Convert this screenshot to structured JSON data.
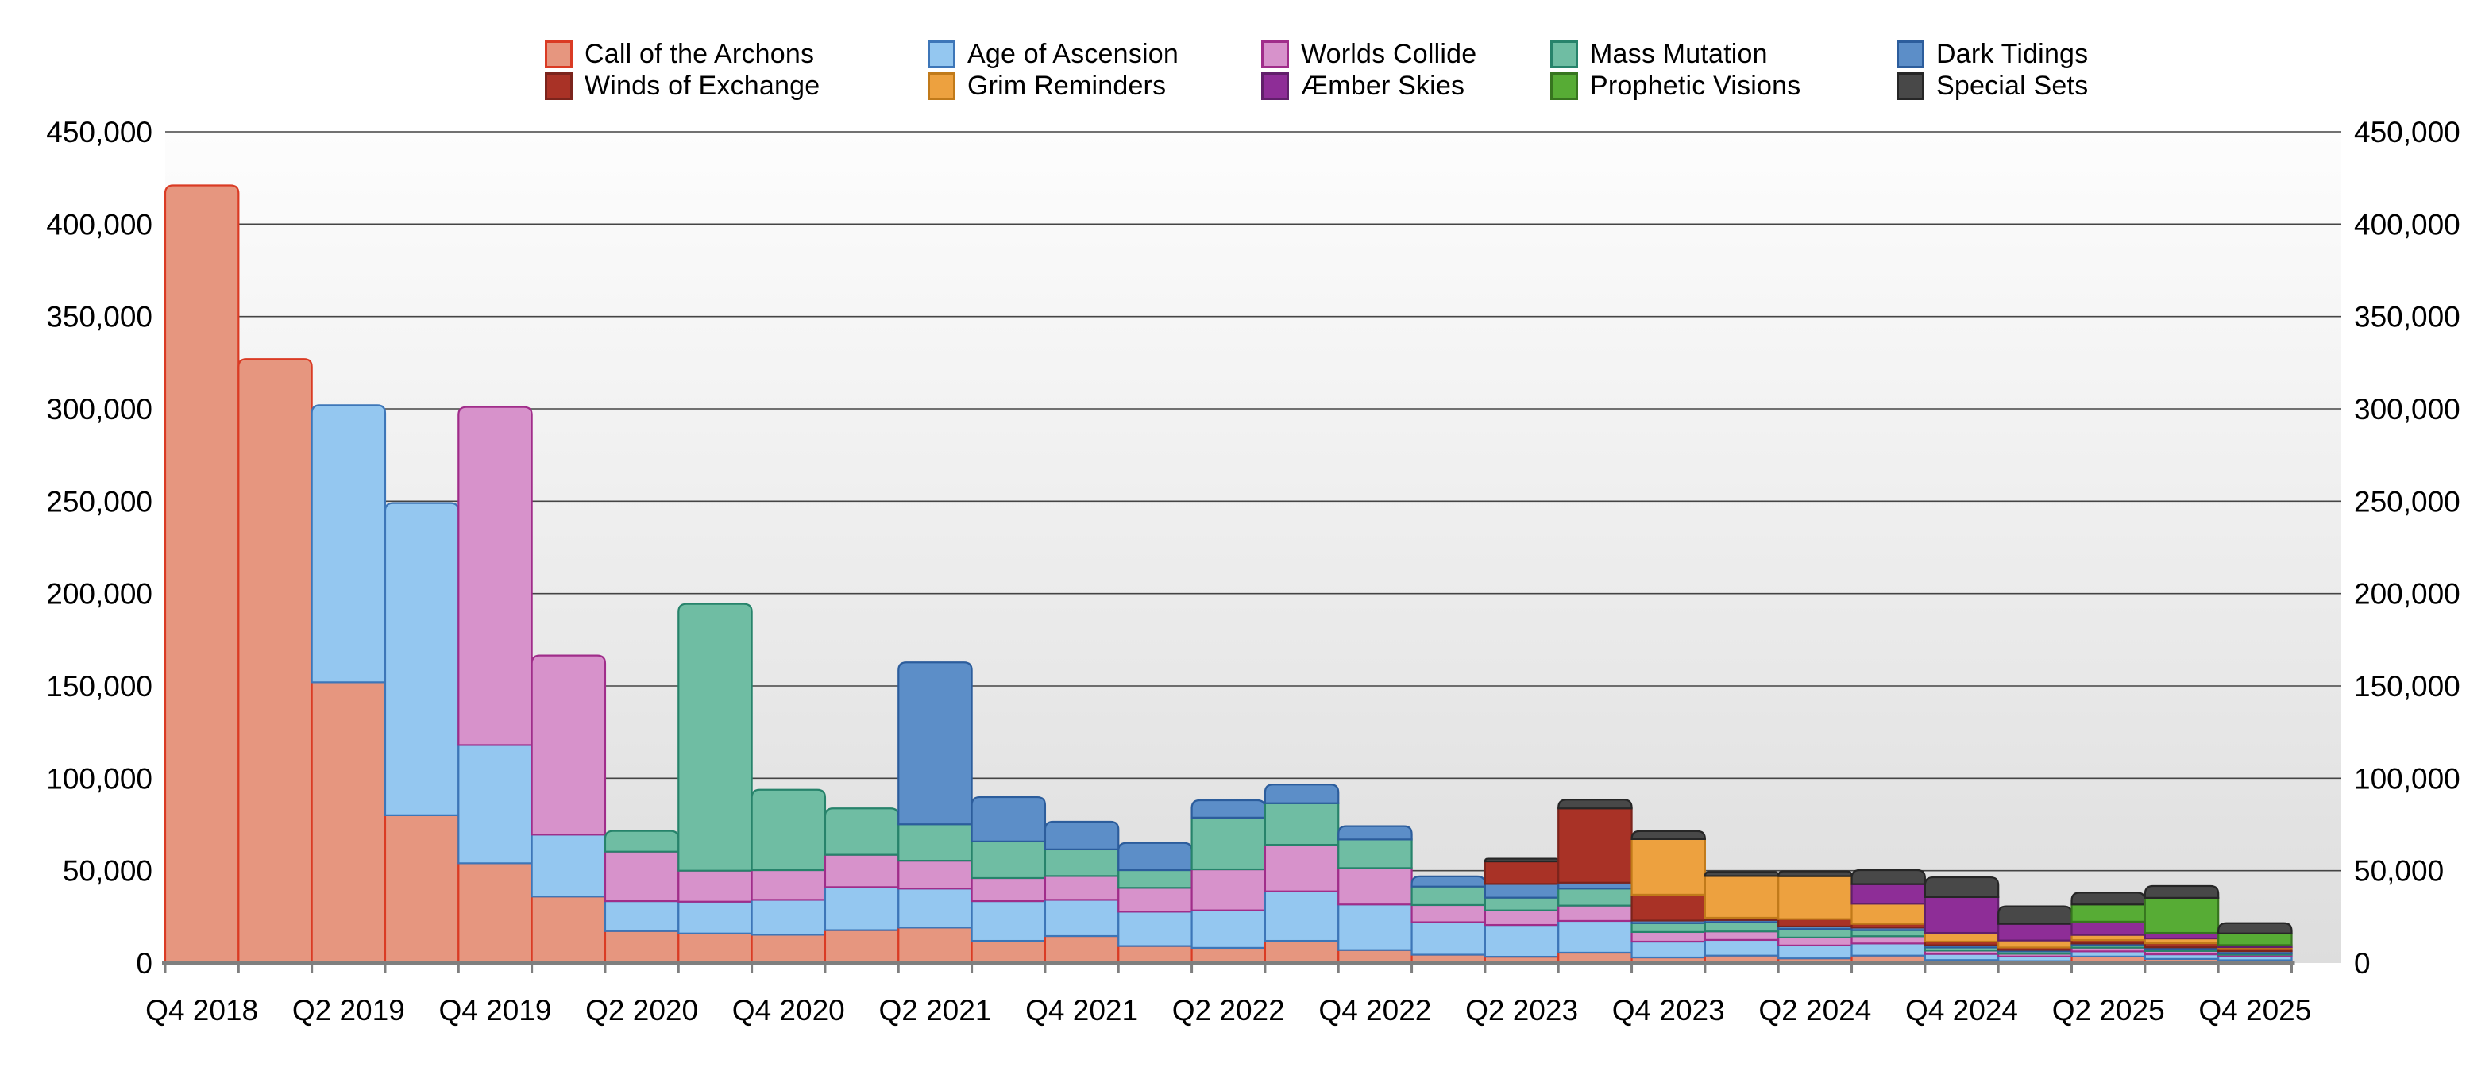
{
  "chart_data": {
    "type": "bar",
    "stacked": true,
    "title": "",
    "xlabel": "",
    "ylabel": "",
    "ylim": [
      0,
      450000
    ],
    "y_tick_step": 50000,
    "y_tick_format": "comma",
    "y_axis_sides": [
      "left",
      "right"
    ],
    "grid": "horizontal",
    "legend_position": "top",
    "x_label_every": 2,
    "categories": [
      "Q4 2018",
      "Q1 2019",
      "Q2 2019",
      "Q3 2019",
      "Q4 2019",
      "Q1 2020",
      "Q2 2020",
      "Q3 2020",
      "Q4 2020",
      "Q1 2021",
      "Q2 2021",
      "Q3 2021",
      "Q4 2021",
      "Q1 2022",
      "Q2 2022",
      "Q3 2022",
      "Q4 2022",
      "Q1 2023",
      "Q2 2023",
      "Q3 2023",
      "Q4 2023",
      "Q1 2024",
      "Q2 2024",
      "Q3 2024",
      "Q4 2024",
      "Q1 2025",
      "Q2 2025",
      "Q3 2025",
      "Q4 2025"
    ],
    "shown_x_labels": [
      "Q4 2018",
      "Q2 2019",
      "Q4 2019",
      "Q2 2020",
      "Q4 2020",
      "Q2 2021",
      "Q4 2021",
      "Q2 2022",
      "Q4 2022",
      "Q2 2023",
      "Q4 2023",
      "Q2 2024",
      "Q4 2024",
      "Q2 2025",
      "Q4 2025"
    ],
    "series": [
      {
        "name": "Call of the Archons",
        "fill": "#E6967F",
        "stroke": "#DA3B24",
        "values": [
          421000,
          327000,
          152000,
          80000,
          54000,
          36000,
          17300,
          16000,
          15300,
          17800,
          19200,
          12000,
          14600,
          9200,
          8200,
          12000,
          7000,
          4500,
          3400,
          5600,
          3000,
          4000,
          2500,
          4000,
          1600,
          1000,
          3500,
          2200,
          1500
        ]
      },
      {
        "name": "Age of Ascension",
        "fill": "#94C7F0",
        "stroke": "#3D76B8",
        "values": [
          0,
          0,
          150000,
          169000,
          64000,
          33500,
          16200,
          17200,
          18900,
          23300,
          21100,
          21500,
          19600,
          18600,
          20300,
          26800,
          24700,
          17600,
          17200,
          17200,
          8600,
          8500,
          7000,
          6600,
          3300,
          2500,
          2800,
          2500,
          2000
        ]
      },
      {
        "name": "Worlds Collide",
        "fill": "#D792CB",
        "stroke": "#A02D8A",
        "values": [
          0,
          0,
          0,
          0,
          183000,
          97000,
          26800,
          16800,
          16100,
          17500,
          15100,
          12500,
          12900,
          12900,
          22200,
          25200,
          19700,
          9300,
          7900,
          8300,
          5200,
          4600,
          4300,
          3900,
          1800,
          1500,
          2000,
          1800,
          1000
        ]
      },
      {
        "name": "Mass Mutation",
        "fill": "#6FBDA3",
        "stroke": "#27836B",
        "values": [
          0,
          0,
          0,
          0,
          0,
          0,
          11200,
          144400,
          43500,
          25100,
          19700,
          19800,
          14400,
          9600,
          28000,
          22500,
          15500,
          10000,
          6900,
          9200,
          4800,
          5000,
          4600,
          3300,
          1700,
          1300,
          1400,
          1200,
          700
        ]
      },
      {
        "name": "Dark Tidings",
        "fill": "#5C8EC8",
        "stroke": "#2C5D9C",
        "values": [
          0,
          0,
          0,
          0,
          0,
          0,
          0,
          0,
          0,
          0,
          87700,
          24000,
          15000,
          14700,
          9400,
          10100,
          7200,
          5500,
          7400,
          3200,
          1400,
          1200,
          1400,
          1400,
          1200,
          800,
          900,
          800,
          1200
        ]
      },
      {
        "name": "Winds of Exchange",
        "fill": "#A93226",
        "stroke": "#7B241C",
        "values": [
          0,
          0,
          0,
          0,
          0,
          0,
          0,
          0,
          0,
          0,
          0,
          0,
          0,
          0,
          0,
          0,
          0,
          0,
          12200,
          40200,
          14000,
          1200,
          4000,
          2000,
          2000,
          1300,
          1800,
          2200,
          1600
        ]
      },
      {
        "name": "Grim Reminders",
        "fill": "#EDA13F",
        "stroke": "#C17A1A",
        "values": [
          0,
          0,
          0,
          0,
          0,
          0,
          0,
          0,
          0,
          0,
          0,
          0,
          0,
          0,
          0,
          0,
          0,
          0,
          0,
          0,
          30100,
          22600,
          23200,
          10900,
          4700,
          3800,
          2800,
          2600,
          600
        ]
      },
      {
        "name": "Æmber Skies",
        "fill": "#8E2D97",
        "stroke": "#611F6B",
        "values": [
          0,
          0,
          0,
          0,
          0,
          0,
          0,
          0,
          0,
          0,
          0,
          0,
          0,
          0,
          0,
          0,
          0,
          0,
          0,
          0,
          0,
          0,
          0,
          10600,
          19400,
          9000,
          7200,
          3000,
          1100
        ]
      },
      {
        "name": "Prophetic Visions",
        "fill": "#57AC35",
        "stroke": "#37751F",
        "values": [
          0,
          0,
          0,
          0,
          0,
          0,
          0,
          0,
          0,
          0,
          0,
          0,
          0,
          0,
          0,
          0,
          0,
          0,
          0,
          0,
          0,
          0,
          0,
          0,
          0,
          0,
          9300,
          19000,
          6300
        ]
      },
      {
        "name": "Special Sets",
        "fill": "#484848",
        "stroke": "#262626",
        "values": [
          0,
          0,
          0,
          0,
          0,
          0,
          0,
          0,
          0,
          0,
          0,
          0,
          0,
          0,
          0,
          0,
          0,
          0,
          1500,
          4700,
          4300,
          2200,
          2600,
          7600,
          10700,
          9500,
          6400,
          6400,
          5600
        ]
      }
    ],
    "legend_rows": [
      [
        "Call of the Archons",
        "Age of Ascension",
        "Worlds Collide",
        "Mass Mutation",
        "Dark Tidings"
      ],
      [
        "Winds of Exchange",
        "Grim Reminders",
        "Æmber Skies",
        "Prophetic Visions",
        "Special Sets"
      ]
    ]
  }
}
